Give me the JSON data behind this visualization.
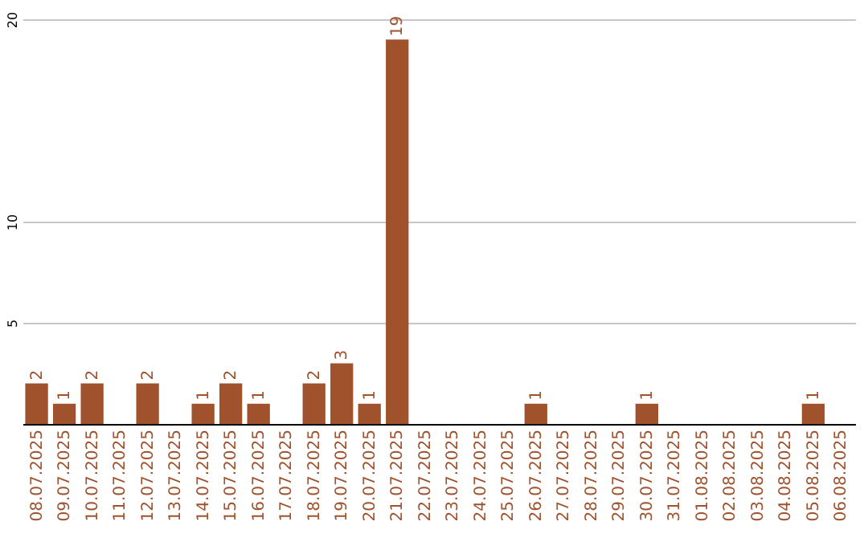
{
  "chart_data": {
    "type": "bar",
    "categories": [
      "08.07.2025",
      "09.07.2025",
      "10.07.2025",
      "11.07.2025",
      "12.07.2025",
      "13.07.2025",
      "14.07.2025",
      "15.07.2025",
      "16.07.2025",
      "17.07.2025",
      "18.07.2025",
      "19.07.2025",
      "20.07.2025",
      "21.07.2025",
      "22.07.2025",
      "23.07.2025",
      "24.07.2025",
      "25.07.2025",
      "26.07.2025",
      "27.07.2025",
      "28.07.2025",
      "29.07.2025",
      "30.07.2025",
      "31.07.2025",
      "01.08.2025",
      "02.08.2025",
      "03.08.2025",
      "04.08.2025",
      "05.08.2025",
      "06.08.2025"
    ],
    "values": [
      2,
      1,
      2,
      0,
      2,
      0,
      1,
      2,
      1,
      0,
      2,
      3,
      1,
      19,
      0,
      0,
      0,
      0,
      1,
      0,
      0,
      0,
      1,
      0,
      0,
      0,
      0,
      0,
      1,
      0
    ],
    "value_labels": [
      "2",
      "1",
      "2",
      null,
      "2",
      null,
      "1",
      "2",
      "1",
      null,
      "2",
      "3",
      "1",
      "19",
      null,
      null,
      null,
      null,
      "1",
      null,
      null,
      null,
      "1",
      null,
      null,
      null,
      null,
      null,
      "1",
      null
    ],
    "color": "#a0522d",
    "ylim": [
      0,
      20
    ],
    "yticks": [
      5,
      10,
      20
    ],
    "grid": "y"
  }
}
